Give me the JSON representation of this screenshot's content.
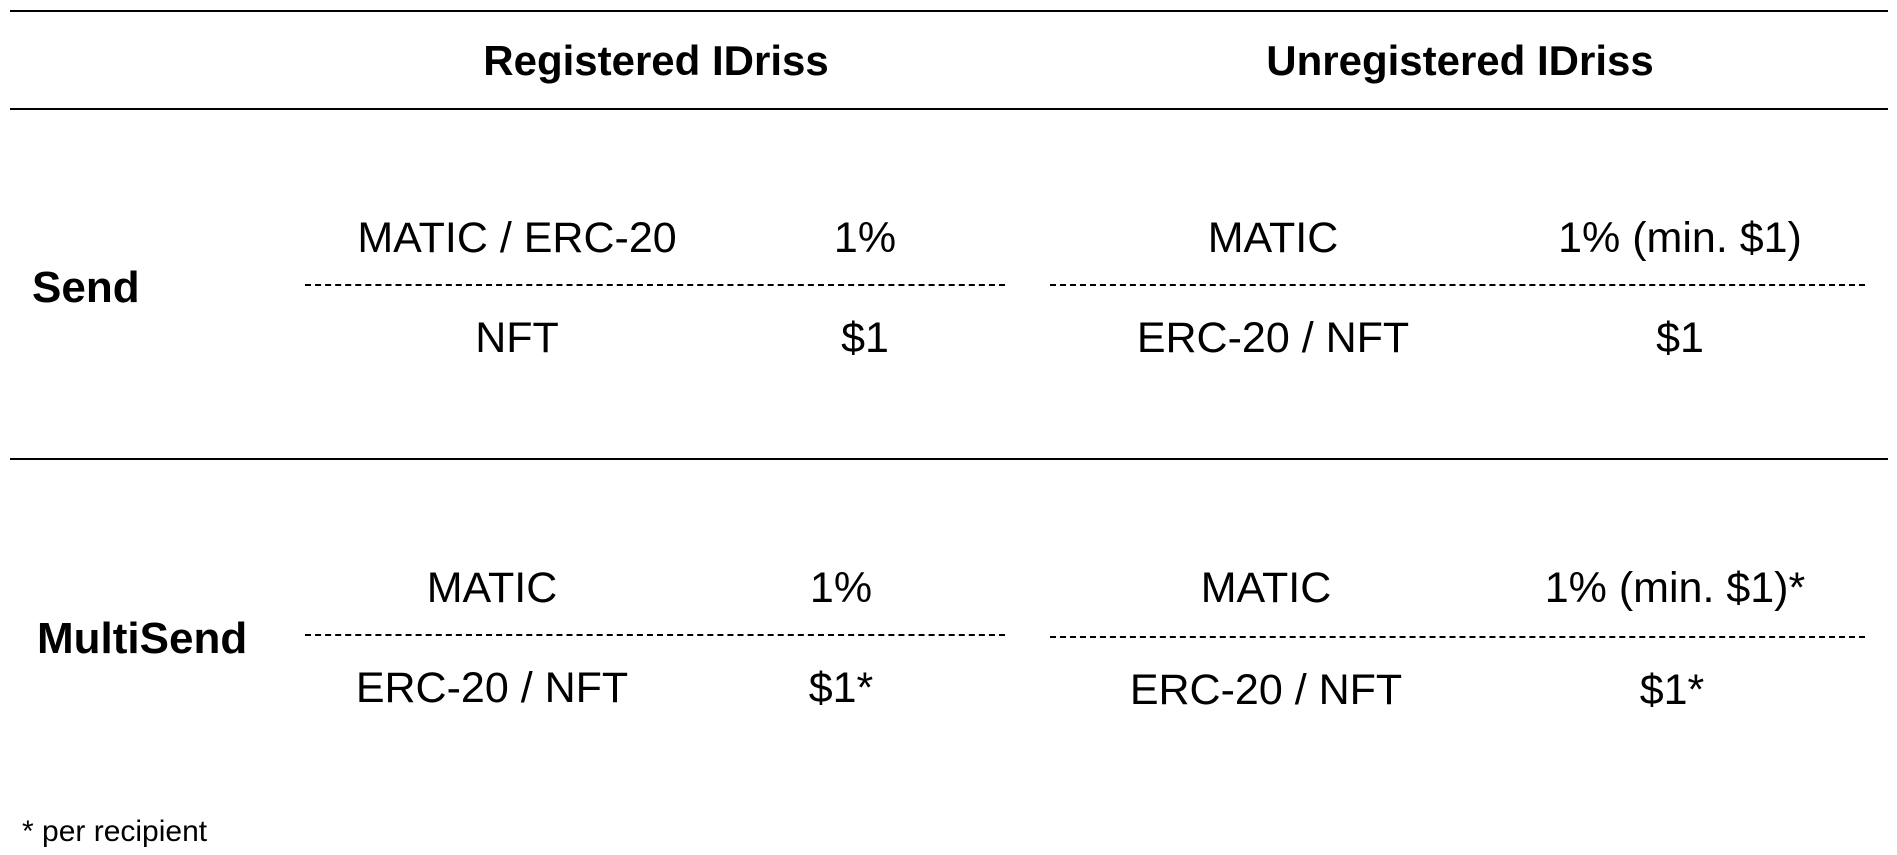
{
  "columns": {
    "registered": "Registered IDriss",
    "unregistered": "Unregistered IDriss"
  },
  "rows": [
    {
      "label": "Send",
      "registered": [
        {
          "asset": "MATIC / ERC-20",
          "fee": "1%"
        },
        {
          "asset": "NFT",
          "fee": "$1"
        }
      ],
      "unregistered": [
        {
          "asset": "MATIC",
          "fee": "1% (min. $1)"
        },
        {
          "asset": "ERC-20 / NFT",
          "fee": "$1"
        }
      ]
    },
    {
      "label": "MultiSend",
      "registered": [
        {
          "asset": "MATIC",
          "fee": "1%"
        },
        {
          "asset": "ERC-20 / NFT",
          "fee": "$1*"
        }
      ],
      "unregistered": [
        {
          "asset": "MATIC",
          "fee": "1% (min. $1)*"
        },
        {
          "asset": "ERC-20 / NFT",
          "fee": "$1*"
        }
      ]
    }
  ],
  "footnote": "* per recipient"
}
